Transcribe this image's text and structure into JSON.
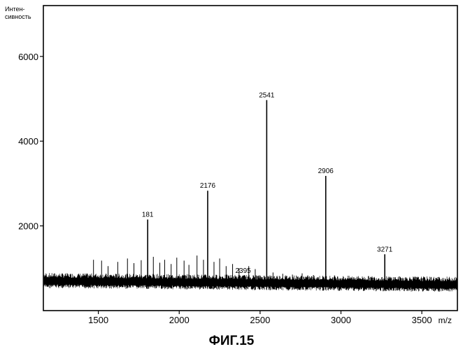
{
  "chart_data": {
    "type": "line",
    "title": "",
    "xlabel": "m/z",
    "ylabel": "Интен-сивность",
    "ylabel_lines": [
      "Интен-",
      "сивность"
    ],
    "xlim": [
      1160,
      3720
    ],
    "ylim": [
      0,
      7200
    ],
    "x_ticks": [
      1500,
      2000,
      2500,
      3000,
      3500
    ],
    "y_ticks": [
      2000,
      4000,
      6000
    ],
    "x_tick_labels": [
      "1500",
      "2000",
      "2500",
      "3000",
      "3500"
    ],
    "y_tick_labels": [
      "2000",
      "4000",
      "6000"
    ],
    "grid": false,
    "baseline_level": 650,
    "peaks": [
      {
        "x": 1805,
        "y": 2150,
        "label": "181"
      },
      {
        "x": 2176,
        "y": 2830,
        "label": "2176"
      },
      {
        "x": 2395,
        "y": 820,
        "label": "2395"
      },
      {
        "x": 2541,
        "y": 4970,
        "label": "2541"
      },
      {
        "x": 2906,
        "y": 3180,
        "label": "2906"
      },
      {
        "x": 3271,
        "y": 1330,
        "label": "3271"
      }
    ],
    "minor_peaks": [
      {
        "x": 1470,
        "y": 1200
      },
      {
        "x": 1520,
        "y": 1180
      },
      {
        "x": 1560,
        "y": 1050
      },
      {
        "x": 1620,
        "y": 1150
      },
      {
        "x": 1680,
        "y": 1230
      },
      {
        "x": 1720,
        "y": 1120
      },
      {
        "x": 1765,
        "y": 1190
      },
      {
        "x": 1840,
        "y": 1270
      },
      {
        "x": 1880,
        "y": 1130
      },
      {
        "x": 1910,
        "y": 1200
      },
      {
        "x": 1950,
        "y": 1100
      },
      {
        "x": 1985,
        "y": 1250
      },
      {
        "x": 2030,
        "y": 1180
      },
      {
        "x": 2060,
        "y": 1080
      },
      {
        "x": 2110,
        "y": 1300
      },
      {
        "x": 2150,
        "y": 1200
      },
      {
        "x": 2215,
        "y": 1150
      },
      {
        "x": 2250,
        "y": 1230
      },
      {
        "x": 2290,
        "y": 1050
      },
      {
        "x": 2330,
        "y": 1100
      },
      {
        "x": 2370,
        "y": 1000
      },
      {
        "x": 2430,
        "y": 1050
      },
      {
        "x": 2470,
        "y": 980
      },
      {
        "x": 2580,
        "y": 900
      },
      {
        "x": 2640,
        "y": 870
      },
      {
        "x": 2700,
        "y": 850
      },
      {
        "x": 2760,
        "y": 880
      },
      {
        "x": 2830,
        "y": 840
      },
      {
        "x": 2960,
        "y": 830
      },
      {
        "x": 3100,
        "y": 800
      }
    ]
  },
  "figure": {
    "caption": "ФИГ.15"
  }
}
